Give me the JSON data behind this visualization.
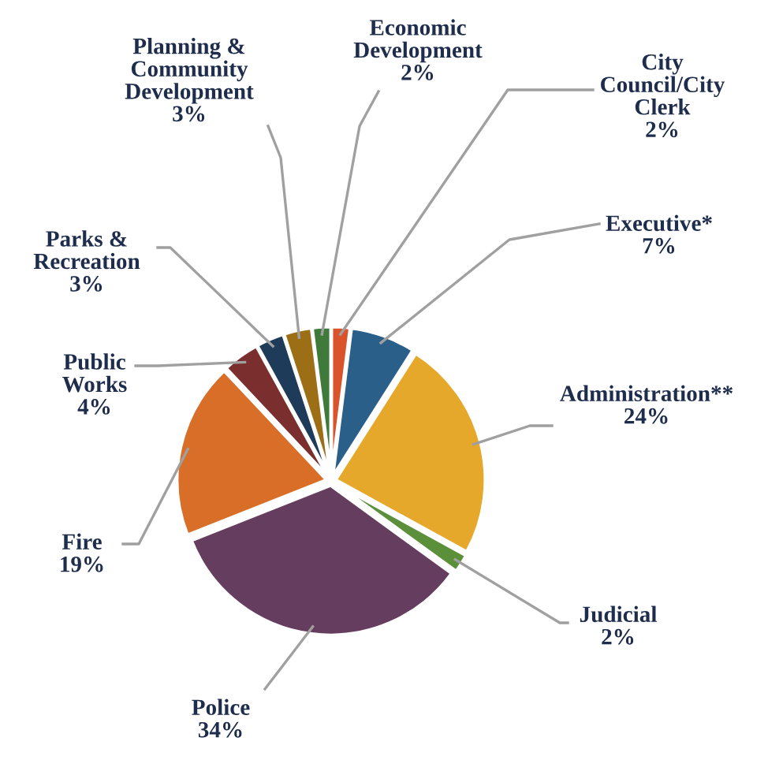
{
  "chart_data": {
    "type": "pie",
    "categories": [
      "City\nCouncil/City\nClerk",
      "Executive*",
      "Administration**",
      "Judicial",
      "Police",
      "Fire",
      "Public\nWorks",
      "Parks &\nRecreation",
      "Planning &\nCommunity\nDevelopment",
      "Economic\nDevelopment"
    ],
    "values": [
      2,
      7,
      24,
      2,
      34,
      19,
      4,
      3,
      3,
      2
    ],
    "colors": [
      "#d9542b",
      "#2a5f8a",
      "#e6a82a",
      "#5b8f3a",
      "#653d5e",
      "#d86e27",
      "#7a2e2e",
      "#1f3b5a",
      "#9c6f17",
      "#3f7a3a"
    ],
    "value_labels": [
      "2%",
      "7%",
      "24%",
      "2%",
      "34%",
      "19%",
      "4%",
      "3%",
      "3%",
      "2%"
    ]
  }
}
